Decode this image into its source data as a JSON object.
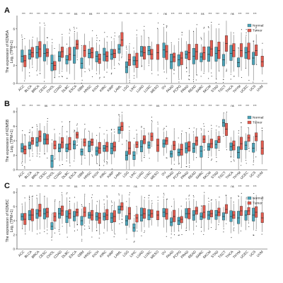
{
  "chart_data": [
    {
      "type": "box",
      "panel_label": "A",
      "ylabel_line1": "The expression of KDM5A",
      "ylabel_line2": "Log₂ (TPM+1)",
      "ylim": [
        0,
        7
      ],
      "yticks": [
        0,
        2,
        4,
        6
      ],
      "legend": [
        {
          "name": "Normal",
          "color": "#4aa3b8"
        },
        {
          "name": "Tumor",
          "color": "#e05a4e"
        }
      ],
      "categories": [
        "ACC",
        "BLCA",
        "BRCA",
        "CESC",
        "CHOL",
        "COAD",
        "DLBC",
        "ESCA",
        "GBM",
        "HNSC",
        "KICH",
        "KIRC",
        "KIRP",
        "LAML",
        "LGG",
        "LIHC",
        "LUAD",
        "LUSC",
        "MESO",
        "OV",
        "PAAD",
        "PCPG",
        "PRAD",
        "READ",
        "SARC",
        "SKCM",
        "STAD",
        "TGCT",
        "THCA",
        "THYM",
        "UCEC",
        "UCS",
        "UVM"
      ],
      "significance": [
        "***",
        "***",
        "***",
        "***",
        "***",
        "***",
        "***",
        "ns",
        "***",
        "ns",
        "***",
        "***",
        "***",
        "***",
        "***",
        "***",
        "***",
        "***",
        "*",
        "ns",
        "***",
        "***",
        "***",
        "***",
        "ns",
        "***",
        "***",
        "***",
        "ns",
        "***",
        "***",
        "***",
        ""
      ],
      "normal_median": [
        3.0,
        3.2,
        3.4,
        3.3,
        2.2,
        3.0,
        2.6,
        3.1,
        2.2,
        3.3,
        3.0,
        3.2,
        3.2,
        3.8,
        1.8,
        2.5,
        3.5,
        3.6,
        null,
        3.7,
        2.4,
        2.6,
        3.2,
        3.0,
        2.9,
        3.2,
        3.3,
        2.6,
        3.3,
        2.3,
        3.4,
        2.8,
        null
      ],
      "tumor_median": [
        2.5,
        3.4,
        3.8,
        3.4,
        2.0,
        3.5,
        3.2,
        4.3,
        3.6,
        3.4,
        2.7,
        3.0,
        3.3,
        4.8,
        2.6,
        2.5,
        3.4,
        3.2,
        3.4,
        3.5,
        2.9,
        2.8,
        3.4,
        3.5,
        3.4,
        3.8,
        3.6,
        4.4,
        3.6,
        3.6,
        3.5,
        3.6,
        2.4
      ]
    },
    {
      "type": "box",
      "panel_label": "B",
      "ylabel_line1": "The expression of KDM5B",
      "ylabel_line2": "Log₂ (TPM+1)",
      "ylim": [
        0,
        8
      ],
      "yticks": [
        0,
        2,
        4,
        6,
        8
      ],
      "legend": [
        {
          "name": "Normal",
          "color": "#4aa3b8"
        },
        {
          "name": "Tumor",
          "color": "#e05a4e"
        }
      ],
      "categories": [
        "ACC",
        "BLCA",
        "BRCA",
        "CESC",
        "CHOL",
        "COAD",
        "DLBC",
        "ESCA",
        "GBM",
        "HNSC",
        "KICH",
        "KIRC",
        "KIRP",
        "LAML",
        "LGG",
        "LIHC",
        "LUAD",
        "LUSC",
        "MESO",
        "OV",
        "PAAD",
        "PCPG",
        "PRAD",
        "READ",
        "SARC",
        "SKCM",
        "STAD",
        "TGCT",
        "THCA",
        "THYM",
        "UCEC",
        "UCS",
        "UVM"
      ],
      "significance": [
        "***",
        "***",
        "***",
        "ns",
        "***",
        "***",
        "***",
        "***",
        "***",
        "**",
        "***",
        "***",
        "***",
        "***",
        "***",
        "***",
        "***",
        "***",
        "ns",
        "***",
        "***",
        "***",
        "***",
        "***",
        "***",
        "***",
        "***",
        "***",
        "ns",
        "***",
        "***",
        "***",
        ""
      ],
      "normal_median": [
        3.0,
        3.4,
        3.8,
        4.2,
        1.2,
        3.0,
        3.0,
        3.5,
        2.5,
        3.3,
        2.6,
        3.0,
        3.0,
        5.5,
        2.0,
        2.0,
        3.2,
        3.4,
        null,
        3.6,
        2.2,
        2.4,
        3.0,
        3.0,
        2.6,
        3.2,
        3.5,
        6.5,
        3.2,
        2.4,
        3.4,
        3.0,
        null
      ],
      "tumor_median": [
        2.8,
        4.0,
        4.6,
        4.2,
        3.4,
        3.8,
        3.6,
        4.8,
        3.8,
        3.8,
        3.0,
        3.2,
        3.2,
        6.0,
        3.0,
        3.5,
        4.2,
        4.6,
        3.4,
        4.0,
        3.4,
        2.8,
        3.2,
        4.0,
        4.2,
        3.6,
        4.2,
        5.6,
        3.4,
        3.6,
        4.4,
        4.6,
        3.0
      ]
    },
    {
      "type": "box",
      "panel_label": "C",
      "ylabel_line1": "The expression of KDM5C",
      "ylabel_line2": "Log₂ (TPM+1)",
      "ylim": [
        0,
        8
      ],
      "yticks": [
        0,
        2,
        4,
        6,
        8
      ],
      "legend": [
        {
          "name": "Normal",
          "color": "#4aa3b8"
        },
        {
          "name": "Tumor",
          "color": "#e05a4e"
        }
      ],
      "categories": [
        "ACC",
        "BLCA",
        "BRCA",
        "CESC",
        "CHOL",
        "COAD",
        "DLBC",
        "ESCA",
        "GBM",
        "HNSC",
        "KICH",
        "KIRC",
        "KIRP",
        "LAML",
        "LGG",
        "LIHC",
        "LUAD",
        "LUSC",
        "MESO",
        "OV",
        "PAAD",
        "PCPG",
        "PRAD",
        "READ",
        "SARC",
        "SKCM",
        "STAD",
        "TGCT",
        "THCA",
        "THYM",
        "UCEC",
        "UCS",
        "UVM"
      ],
      "significance": [
        "***",
        "***",
        "***",
        "***",
        "***",
        "***",
        "***",
        "ns",
        "***",
        "***",
        "***",
        "***",
        "***",
        "***",
        "***",
        "ns",
        "***",
        "***",
        "***",
        "***",
        "***",
        "***",
        "***",
        "***",
        "***",
        "***",
        "***",
        "***",
        "ns",
        "***",
        "***",
        "***",
        ""
      ],
      "normal_median": [
        4.6,
        4.8,
        5.0,
        5.0,
        3.2,
        5.0,
        4.6,
        4.6,
        4.0,
        4.8,
        4.6,
        4.6,
        4.4,
        5.6,
        4.0,
        3.0,
        4.8,
        4.8,
        null,
        5.2,
        3.8,
        4.0,
        5.0,
        4.8,
        4.6,
        4.8,
        4.8,
        4.6,
        4.6,
        4.4,
        4.8,
        4.8,
        null
      ],
      "tumor_median": [
        4.2,
        4.8,
        5.4,
        5.2,
        4.6,
        5.4,
        5.0,
        5.2,
        5.2,
        4.8,
        4.4,
        4.8,
        4.6,
        6.0,
        5.0,
        4.4,
        5.0,
        5.0,
        4.8,
        5.0,
        4.6,
        4.2,
        5.0,
        5.4,
        5.2,
        5.0,
        5.2,
        5.6,
        4.8,
        5.4,
        5.4,
        5.2,
        4.4
      ]
    }
  ]
}
